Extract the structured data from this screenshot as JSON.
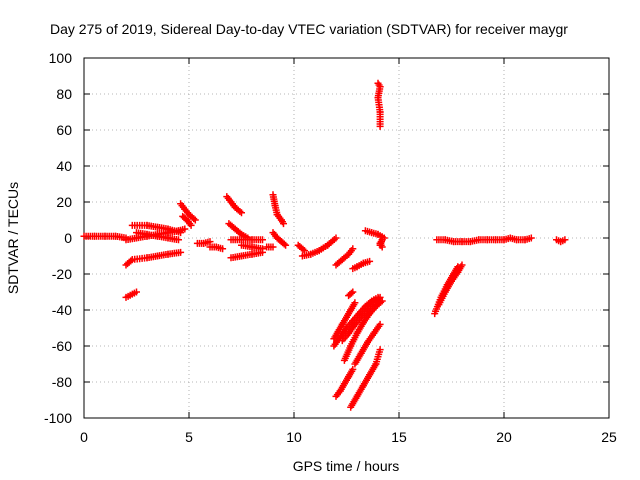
{
  "chart_data": {
    "type": "scatter",
    "title": "Day 275 of 2019, Sidereal Day-to-day VTEC variation (SDTVAR) for receiver maygr",
    "xlabel": "GPS time / hours",
    "ylabel": "SDTVAR / TECUs",
    "xlim": [
      0,
      25
    ],
    "ylim": [
      -100,
      100
    ],
    "xticks": [
      0,
      5,
      10,
      15,
      20,
      25
    ],
    "yticks": [
      -100,
      -80,
      -60,
      -40,
      -20,
      0,
      20,
      40,
      60,
      80,
      100
    ],
    "grid": true,
    "marker": "+",
    "color": "#ff0000",
    "segments": [
      {
        "x": [
          0.0,
          0.5,
          1.0,
          1.5,
          2.0
        ],
        "y": [
          1,
          1,
          1,
          1,
          0
        ]
      },
      {
        "x": [
          2.0,
          2.3
        ],
        "y": [
          -15,
          -12
        ]
      },
      {
        "x": [
          2.0,
          2.5
        ],
        "y": [
          -33,
          -30
        ]
      },
      {
        "x": [
          2.3,
          3.0,
          3.5,
          4.0,
          4.6
        ],
        "y": [
          -12,
          -11,
          -10,
          -9,
          -8
        ]
      },
      {
        "x": [
          2.0,
          2.5,
          3.0,
          3.5,
          4.0,
          4.5,
          4.8
        ],
        "y": [
          -1,
          0,
          1,
          2,
          3,
          4,
          5
        ]
      },
      {
        "x": [
          2.3,
          3.0,
          3.5,
          4.0,
          4.6
        ],
        "y": [
          7,
          7,
          6,
          5,
          3
        ]
      },
      {
        "x": [
          2.5,
          3.0,
          3.5,
          4.0,
          4.5
        ],
        "y": [
          3,
          2,
          1,
          0,
          -1
        ]
      },
      {
        "x": [
          4.6,
          4.8,
          5.0,
          5.3
        ],
        "y": [
          19,
          16,
          13,
          10
        ]
      },
      {
        "x": [
          4.7,
          4.9,
          5.1
        ],
        "y": [
          12,
          10,
          7
        ]
      },
      {
        "x": [
          5.4,
          5.7,
          6.0
        ],
        "y": [
          -3,
          -3,
          -2
        ]
      },
      {
        "x": [
          6.0,
          6.3,
          6.6
        ],
        "y": [
          -5,
          -5,
          -6
        ]
      },
      {
        "x": [
          6.8,
          7.0,
          7.2,
          7.5
        ],
        "y": [
          23,
          20,
          17,
          14
        ]
      },
      {
        "x": [
          6.9,
          7.2,
          7.5,
          7.8
        ],
        "y": [
          8,
          5,
          2,
          0
        ]
      },
      {
        "x": [
          7.0,
          7.5,
          8.0,
          8.5
        ],
        "y": [
          -1,
          -1,
          -1,
          -1
        ]
      },
      {
        "x": [
          7.0,
          7.5,
          8.0,
          8.5
        ],
        "y": [
          -11,
          -10,
          -9,
          -8
        ]
      },
      {
        "x": [
          7.5,
          8.0,
          8.5
        ],
        "y": [
          -4,
          -5,
          -6
        ]
      },
      {
        "x": [
          8.7,
          9.0
        ],
        "y": [
          -5,
          -5
        ]
      },
      {
        "x": [
          9.0,
          9.1,
          9.2,
          9.4,
          9.5
        ],
        "y": [
          24,
          18,
          13,
          10,
          8
        ]
      },
      {
        "x": [
          9.0,
          9.2,
          9.4,
          9.6
        ],
        "y": [
          3,
          0,
          -2,
          -4
        ]
      },
      {
        "x": [
          10.4,
          10.8,
          11.2,
          11.6,
          12.0
        ],
        "y": [
          -10,
          -9,
          -7,
          -4,
          0
        ]
      },
      {
        "x": [
          10.2,
          10.5
        ],
        "y": [
          -4,
          -7
        ]
      },
      {
        "x": [
          12.0,
          12.3,
          12.6,
          12.8
        ],
        "y": [
          -15,
          -12,
          -9,
          -6
        ]
      },
      {
        "x": [
          12.8,
          13.0,
          13.3,
          13.6
        ],
        "y": [
          -17,
          -16,
          -14,
          -13
        ]
      },
      {
        "x": [
          13.4,
          13.7,
          14.0,
          14.3
        ],
        "y": [
          4,
          3,
          2,
          0
        ]
      },
      {
        "x": [
          14.1,
          14.2,
          14.1,
          14.2
        ],
        "y": [
          -4,
          -1,
          -3,
          -5
        ]
      },
      {
        "x": [
          14.0,
          14.1,
          14.0,
          14.1,
          14.1
        ],
        "y": [
          86,
          84,
          78,
          70,
          62
        ]
      },
      {
        "x": [
          11.9,
          12.1,
          12.3,
          12.5,
          12.7,
          12.9
        ],
        "y": [
          -56,
          -52,
          -48,
          -44,
          -40,
          -36
        ]
      },
      {
        "x": [
          11.9,
          12.2,
          12.5,
          12.8,
          13.1,
          13.4,
          13.7,
          14.0
        ],
        "y": [
          -60,
          -55,
          -50,
          -46,
          -42,
          -38,
          -35,
          -33
        ]
      },
      {
        "x": [
          12.3,
          12.6,
          12.9,
          13.2,
          13.5,
          13.8,
          14.1
        ],
        "y": [
          -57,
          -53,
          -48,
          -44,
          -40,
          -36,
          -33
        ]
      },
      {
        "x": [
          12.4,
          12.7,
          13.0,
          13.3,
          13.6,
          13.9,
          14.2
        ],
        "y": [
          -68,
          -60,
          -53,
          -47,
          -42,
          -38,
          -35
        ]
      },
      {
        "x": [
          12.9,
          13.2,
          13.5,
          13.8,
          14.1
        ],
        "y": [
          -70,
          -64,
          -58,
          -53,
          -48
        ]
      },
      {
        "x": [
          12.0,
          12.2,
          12.4,
          12.6,
          12.8
        ],
        "y": [
          -88,
          -85,
          -81,
          -77,
          -73
        ]
      },
      {
        "x": [
          12.7,
          13.0,
          13.3,
          13.6,
          13.9,
          14.1
        ],
        "y": [
          -94,
          -88,
          -82,
          -76,
          -70,
          -62
        ]
      },
      {
        "x": [
          12.6,
          12.8
        ],
        "y": [
          -32,
          -30
        ]
      },
      {
        "x": [
          16.7,
          17.0,
          17.3,
          17.6,
          17.8
        ],
        "y": [
          -42,
          -33,
          -26,
          -20,
          -16
        ]
      },
      {
        "x": [
          16.9,
          17.2,
          17.5,
          17.8,
          18.0
        ],
        "y": [
          -37,
          -30,
          -24,
          -19,
          -15
        ]
      },
      {
        "x": [
          16.8,
          17.2,
          17.6,
          18.0,
          18.4,
          18.8,
          19.2,
          19.6,
          20.0
        ],
        "y": [
          -1,
          -1,
          -2,
          -2,
          -2,
          -1,
          -1,
          -1,
          -1
        ]
      },
      {
        "x": [
          20.0,
          20.3,
          20.6,
          21.0,
          21.3
        ],
        "y": [
          -1,
          0,
          -1,
          -1,
          0
        ]
      },
      {
        "x": [
          22.5,
          22.7,
          22.9
        ],
        "y": [
          -1,
          -2,
          -1
        ]
      }
    ]
  }
}
